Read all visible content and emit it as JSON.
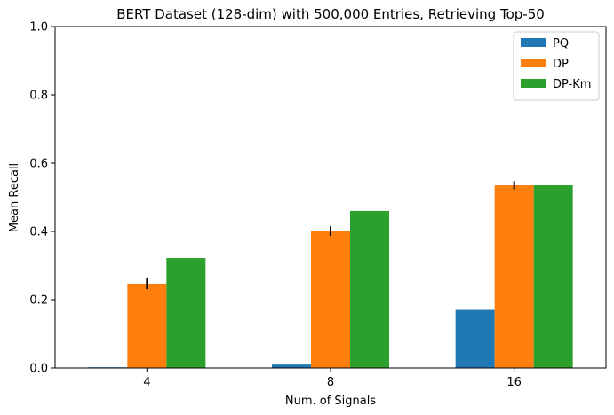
{
  "chart_data": {
    "type": "bar",
    "title": "BERT Dataset (128-dim) with 500,000 Entries, Retrieving Top-50",
    "xlabel": "Num. of Signals",
    "ylabel": "Mean Recall",
    "categories": [
      "4",
      "8",
      "16"
    ],
    "ylim": [
      0,
      1.0
    ],
    "yticks": [
      "0.0",
      "0.2",
      "0.4",
      "0.6",
      "0.8",
      "1.0"
    ],
    "legend_position": "top-right",
    "grid": false,
    "series": [
      {
        "name": "PQ",
        "color": "#1f77b4",
        "values": [
          0.002,
          0.01,
          0.17
        ]
      },
      {
        "name": "DP",
        "color": "#ff7f0e",
        "values": [
          0.247,
          0.401,
          0.535
        ],
        "errors": [
          0.016,
          0.014,
          0.012
        ]
      },
      {
        "name": "DP-Km",
        "color": "#2ca02c",
        "values": [
          0.322,
          0.46,
          0.535
        ]
      }
    ]
  }
}
